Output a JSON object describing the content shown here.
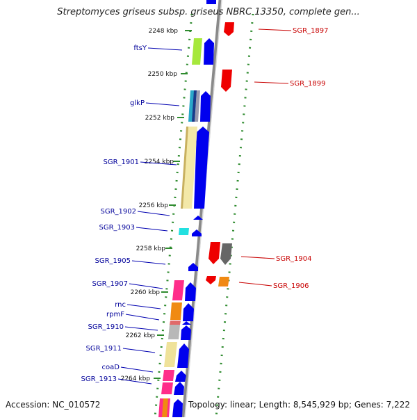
{
  "title": "Streptomyces griseus subsp. griseus NBRC 13350, complete gen...",
  "footer": {
    "accession": "Accession: NC_010572",
    "topology": "Topology: linear; Length: 8,545,929 bp; Genes: 7,222"
  },
  "colors": {
    "axis_dots": "#2e8b2e",
    "forward_gene": "#0000ee",
    "reverse_gene": "#ee0000",
    "left_label": "#00009a",
    "right_label": "#c80000"
  },
  "kbp_ticks": [
    "2248 kbp",
    "2250 kbp",
    "2252 kbp",
    "2254 kbp",
    "2256 kbp",
    "2258 kbp",
    "2260 kbp",
    "2262 kbp",
    "2264 kbp"
  ],
  "left_genes": [
    "ftsY",
    "glkP",
    "SGR_1901",
    "SGR_1902",
    "SGR_1903",
    "SGR_1905",
    "SGR_1907",
    "rnc",
    "rpmF",
    "SGR_1910",
    "SGR_1911",
    "coaD",
    "SGR_1913"
  ],
  "right_genes": [
    "SGR_1897",
    "SGR_1899",
    "SGR_1904",
    "SGR_1906"
  ]
}
